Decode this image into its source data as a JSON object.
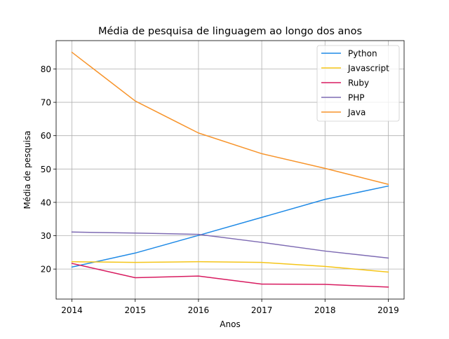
{
  "chart_data": {
    "type": "line",
    "title": "Média de pesquisa de linguagem ao longo dos anos",
    "xlabel": "Anos",
    "ylabel": "Média de pesquisa",
    "x": [
      2014,
      2015,
      2016,
      2017,
      2018,
      2019
    ],
    "xlim": [
      2013.75,
      2019.25
    ],
    "ylim": [
      11,
      88.5
    ],
    "yticks": [
      20,
      30,
      40,
      50,
      60,
      70,
      80
    ],
    "grid": true,
    "legend_position": "top-right",
    "series": [
      {
        "name": "Python",
        "color": "#1f8ae6",
        "values": [
          20.6,
          24.8,
          30.1,
          35.5,
          40.9,
          44.9
        ]
      },
      {
        "name": "Javascript",
        "color": "#f5c518",
        "values": [
          22.2,
          22.0,
          22.2,
          22.0,
          20.8,
          19.1
        ]
      },
      {
        "name": "Ruby",
        "color": "#d81b60",
        "values": [
          21.7,
          17.4,
          17.9,
          15.5,
          15.4,
          14.6
        ]
      },
      {
        "name": "PHP",
        "color": "#7e6bb3",
        "values": [
          31.1,
          30.8,
          30.4,
          28.0,
          25.4,
          23.3
        ]
      },
      {
        "name": "Java",
        "color": "#f7942b",
        "values": [
          85.0,
          70.4,
          60.8,
          54.6,
          50.2,
          45.4
        ]
      }
    ]
  }
}
